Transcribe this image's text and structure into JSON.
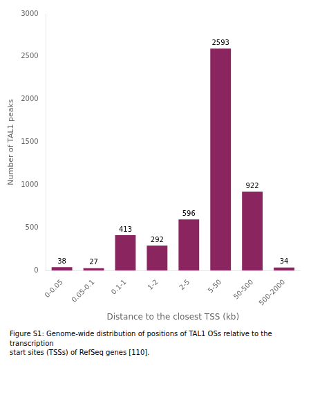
{
  "chart_data": {
    "type": "bar",
    "categories": [
      "0-0.05",
      "0.05-0.1",
      "0.1-1",
      "1-2",
      "2-5",
      "5-50",
      "50-500",
      "500-2000"
    ],
    "values": [
      38,
      27,
      413,
      292,
      596,
      2593,
      922,
      34
    ],
    "color": "#8B2560",
    "xlabel": "Distance to the closest TSS (kb)",
    "ylabel": "Number of TAL1 peaks",
    "ylim": [
      0,
      3000
    ],
    "yticks": [
      0,
      500,
      1000,
      1500,
      2000,
      2500,
      3000
    ],
    "grid": false,
    "data_labels": true,
    "annotations": [
      "Figure S1: Genome-wide distribution of positions of TAL1 OSs relative to the transcription",
      "start sites (TSSs) of RefSeq genes [110]."
    ]
  }
}
